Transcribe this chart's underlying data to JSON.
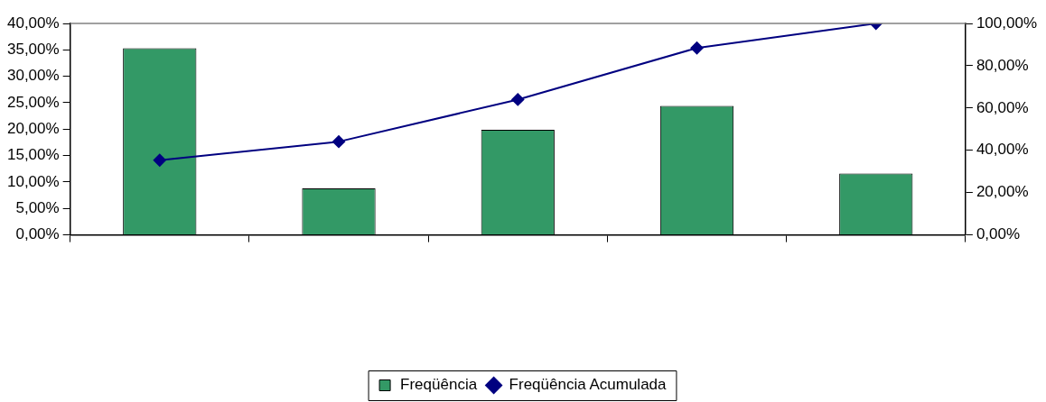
{
  "chart_data": {
    "type": "bar",
    "categories": [
      null,
      null,
      null,
      null,
      null
    ],
    "series": [
      {
        "name": "Freqüência",
        "color": "#339966",
        "values": [
          35.3,
          8.8,
          19.9,
          24.4,
          11.6
        ]
      },
      {
        "name": "Freqüência Acumulada",
        "type": "line",
        "axis": "y2",
        "color": "#000080",
        "values": [
          35.3,
          44.1,
          64.0,
          88.4,
          100
        ]
      }
    ],
    "ylim": [
      0,
      40
    ],
    "yticks": [
      {
        "value": 0,
        "label": "0,00%"
      },
      {
        "value": 5,
        "label": "5,00%"
      },
      {
        "value": 10,
        "label": "10,00%"
      },
      {
        "value": 15,
        "label": "15,00%"
      },
      {
        "value": 20,
        "label": "20,00%"
      },
      {
        "value": 25,
        "label": "25,00%"
      },
      {
        "value": 30,
        "label": "30,00%"
      },
      {
        "value": 35,
        "label": "35,00%"
      },
      {
        "value": 40,
        "label": "40,00%"
      }
    ],
    "y2lim": [
      0,
      100
    ],
    "y2ticks": [
      {
        "value": 0,
        "label": "0,00%"
      },
      {
        "value": 20,
        "label": "20,00%"
      },
      {
        "value": 40,
        "label": "40,00%"
      },
      {
        "value": 60,
        "label": "60,00%"
      },
      {
        "value": 80,
        "label": "80,00%"
      },
      {
        "value": 100,
        "label": "100,00%"
      }
    ],
    "grid": false,
    "legend": "bottom",
    "marker": "diamond",
    "line_style": "solid"
  }
}
